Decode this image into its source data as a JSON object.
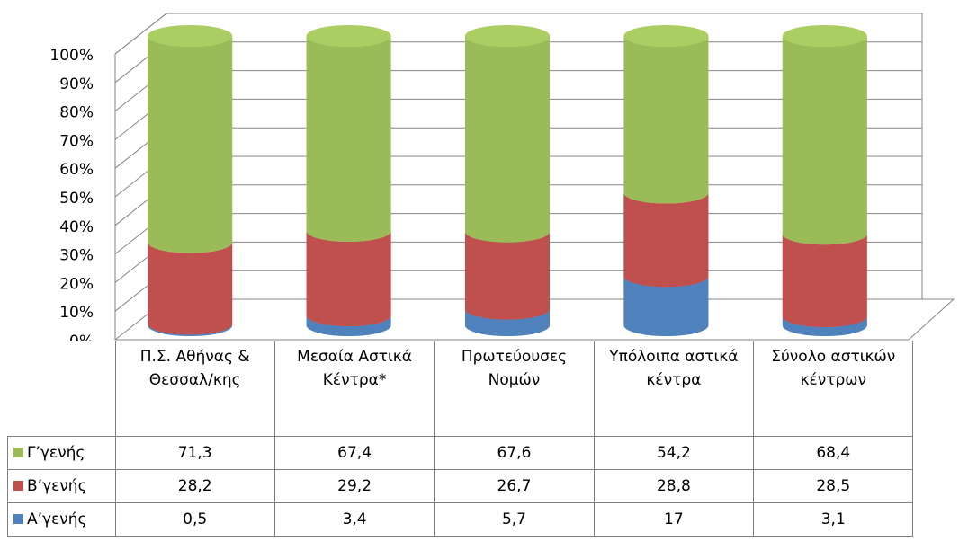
{
  "chart_data": {
    "type": "cylinder-stacked-100",
    "categories": [
      "Π.Σ. Αθήνας & Θεσσαλ/κης",
      "Μεσαία Αστικά Κέντρα*",
      "Πρωτεύουσες Νομών",
      "Υπόλοιπα αστικά κέντρα",
      "Σύνολο αστικών κέντρων"
    ],
    "series": [
      {
        "name": "Γ’γενής",
        "color": "#9bbb59",
        "values": [
          71.3,
          67.4,
          67.6,
          54.2,
          68.4
        ],
        "value_labels": [
          "71,3",
          "67,4",
          "67,6",
          "54,2",
          "68,4"
        ]
      },
      {
        "name": "Β’γενής",
        "color": "#c0504d",
        "values": [
          28.2,
          29.2,
          26.7,
          28.8,
          28.5
        ],
        "value_labels": [
          "28,2",
          "29,2",
          "26,7",
          "28,8",
          "28,5"
        ]
      },
      {
        "name": "Α’γενής",
        "color": "#4f81bd",
        "values": [
          0.5,
          3.4,
          5.7,
          17,
          3.1
        ],
        "value_labels": [
          "0,5",
          "3,4",
          "5,7",
          "17",
          "3,1"
        ]
      }
    ],
    "ylim": [
      0,
      100
    ],
    "yticks": [
      {
        "value": 0,
        "label": "0%"
      },
      {
        "value": 10,
        "label": "10%"
      },
      {
        "value": 20,
        "label": "20%"
      },
      {
        "value": 30,
        "label": "30%"
      },
      {
        "value": 40,
        "label": "40%"
      },
      {
        "value": 50,
        "label": "50%"
      },
      {
        "value": 60,
        "label": "60%"
      },
      {
        "value": 70,
        "label": "70%"
      },
      {
        "value": 80,
        "label": "80%"
      },
      {
        "value": 90,
        "label": "90%"
      },
      {
        "value": 100,
        "label": "100%"
      }
    ],
    "grid": true
  }
}
